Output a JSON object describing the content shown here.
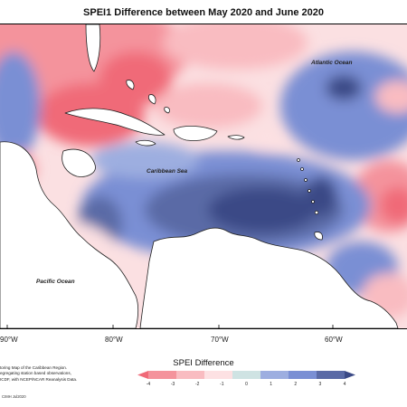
{
  "title": "SPEI1 Difference between May 2020 and June 2020",
  "labels": {
    "atlantic": "Atlantic Ocean",
    "caribbean": "Caribbean Sea",
    "pacific": "Pacific Ocean"
  },
  "longitudes": [
    "90°W",
    "80°W",
    "70°W",
    "60°W"
  ],
  "legend": {
    "title": "SPEI Difference",
    "ticks": [
      "-4",
      "-3",
      "-2",
      "-1",
      "0",
      "1",
      "2",
      "3",
      "4"
    ],
    "colors": [
      "#f06a78",
      "#f4939c",
      "#f9bcc1",
      "#fde1e3",
      "#cfe3e3",
      "#9daee0",
      "#7a8fd4",
      "#5a6aa6",
      "#3b4a86"
    ]
  },
  "credits": [
    "toring Map of the Caribbean Region.",
    "egregating station based observations,",
    "ICDF, with NCEP/NCAR Reanalysis Data."
  ],
  "stamp": "CIMH Jul2020"
}
